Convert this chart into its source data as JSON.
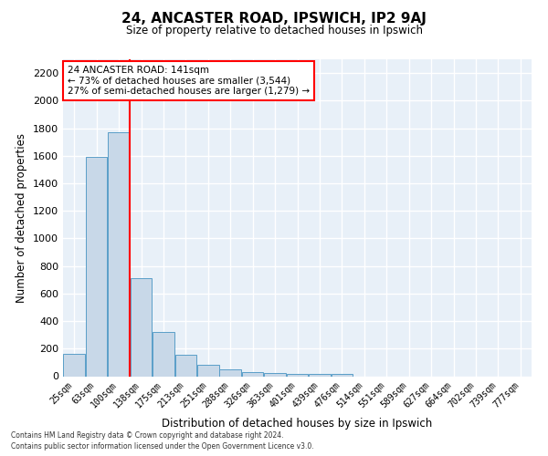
{
  "title1": "24, ANCASTER ROAD, IPSWICH, IP2 9AJ",
  "title2": "Size of property relative to detached houses in Ipswich",
  "xlabel": "Distribution of detached houses by size in Ipswich",
  "ylabel": "Number of detached properties",
  "categories": [
    "25sqm",
    "63sqm",
    "100sqm",
    "138sqm",
    "175sqm",
    "213sqm",
    "251sqm",
    "288sqm",
    "326sqm",
    "363sqm",
    "401sqm",
    "439sqm",
    "476sqm",
    "514sqm",
    "551sqm",
    "589sqm",
    "627sqm",
    "664sqm",
    "702sqm",
    "739sqm",
    "777sqm"
  ],
  "values": [
    160,
    1590,
    1770,
    710,
    320,
    155,
    85,
    50,
    27,
    20,
    18,
    15,
    18,
    0,
    0,
    0,
    0,
    0,
    0,
    0,
    0
  ],
  "bar_color": "#c8d8e8",
  "bar_edge_color": "#5a9ec8",
  "redline_x": 2.5,
  "annotation_line1": "24 ANCASTER ROAD: 141sqm",
  "annotation_line2": "← 73% of detached houses are smaller (3,544)",
  "annotation_line3": "27% of semi-detached houses are larger (1,279) →",
  "annotation_box_color": "white",
  "annotation_box_edge": "red",
  "ylim": [
    0,
    2300
  ],
  "yticks": [
    0,
    200,
    400,
    600,
    800,
    1000,
    1200,
    1400,
    1600,
    1800,
    2000,
    2200
  ],
  "background_color": "#e8f0f8",
  "grid_color": "white",
  "footer1": "Contains HM Land Registry data © Crown copyright and database right 2024.",
  "footer2": "Contains public sector information licensed under the Open Government Licence v3.0."
}
